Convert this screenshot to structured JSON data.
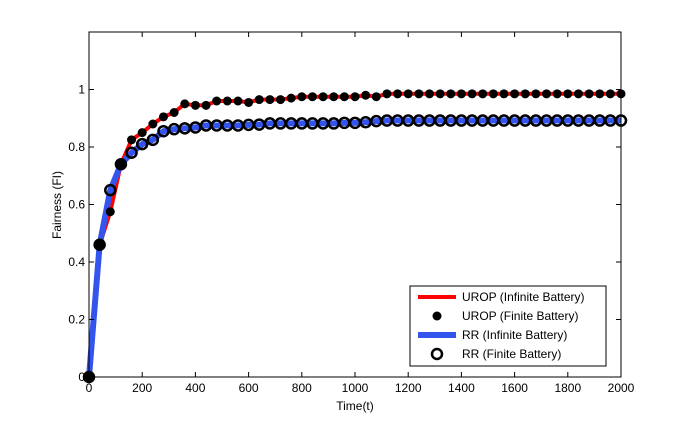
{
  "chart_data": {
    "type": "line",
    "title": "",
    "xlabel": "Time(t)",
    "ylabel": "Fairness (FI)",
    "xlim": [
      0,
      2000
    ],
    "ylim": [
      0,
      1.2
    ],
    "xticks": [
      0,
      200,
      400,
      600,
      800,
      1000,
      1200,
      1400,
      1600,
      1800,
      2000
    ],
    "yticks": [
      0,
      0.2,
      0.4,
      0.6,
      0.8,
      1
    ],
    "xtick_labels": [
      "0",
      "200",
      "400",
      "600",
      "800",
      "1000",
      "1200",
      "1400",
      "1600",
      "1800",
      "2000"
    ],
    "ytick_labels": [
      "0",
      "0.2",
      "0.4",
      "0.6",
      "0.8",
      "1"
    ],
    "grid": false,
    "legend_position": "bottom-right",
    "x": [
      0,
      40,
      80,
      120,
      160,
      200,
      240,
      280,
      320,
      360,
      400,
      440,
      480,
      520,
      560,
      600,
      640,
      680,
      720,
      760,
      800,
      840,
      880,
      920,
      960,
      1000,
      1040,
      1080,
      1120,
      1160,
      1200,
      1240,
      1280,
      1320,
      1360,
      1400,
      1440,
      1480,
      1520,
      1560,
      1600,
      1640,
      1680,
      1720,
      1760,
      1800,
      1840,
      1880,
      1920,
      1960,
      2000
    ],
    "series": [
      {
        "name": "UROP (Infinite Battery)",
        "style": "line",
        "color": "#ff0000",
        "values": [
          0,
          0.46,
          0.575,
          0.74,
          0.825,
          0.85,
          0.88,
          0.905,
          0.92,
          0.95,
          0.945,
          0.945,
          0.96,
          0.96,
          0.96,
          0.955,
          0.965,
          0.965,
          0.965,
          0.97,
          0.975,
          0.975,
          0.975,
          0.975,
          0.975,
          0.975,
          0.98,
          0.975,
          0.985,
          0.985,
          0.985,
          0.985,
          0.985,
          0.985,
          0.985,
          0.985,
          0.985,
          0.985,
          0.985,
          0.985,
          0.985,
          0.985,
          0.985,
          0.985,
          0.985,
          0.985,
          0.985,
          0.985,
          0.985,
          0.985,
          0.985
        ]
      },
      {
        "name": "UROP (Finite Battery)",
        "style": "marker-filled",
        "color": "#000000",
        "values": [
          0,
          0.46,
          0.575,
          0.74,
          0.825,
          0.85,
          0.88,
          0.905,
          0.92,
          0.95,
          0.945,
          0.945,
          0.96,
          0.96,
          0.96,
          0.955,
          0.965,
          0.965,
          0.965,
          0.97,
          0.975,
          0.975,
          0.975,
          0.975,
          0.975,
          0.975,
          0.98,
          0.975,
          0.985,
          0.985,
          0.985,
          0.985,
          0.985,
          0.985,
          0.985,
          0.985,
          0.985,
          0.985,
          0.985,
          0.985,
          0.985,
          0.985,
          0.985,
          0.985,
          0.985,
          0.985,
          0.985,
          0.985,
          0.985,
          0.985,
          0.985
        ]
      },
      {
        "name": "RR (Infinite Battery)",
        "style": "line",
        "color": "#3355ee",
        "values": [
          0,
          0.46,
          0.65,
          0.74,
          0.78,
          0.81,
          0.825,
          0.855,
          0.862,
          0.865,
          0.868,
          0.875,
          0.875,
          0.875,
          0.875,
          0.877,
          0.878,
          0.882,
          0.882,
          0.882,
          0.882,
          0.882,
          0.882,
          0.882,
          0.884,
          0.884,
          0.886,
          0.89,
          0.892,
          0.892,
          0.892,
          0.892,
          0.892,
          0.892,
          0.892,
          0.892,
          0.892,
          0.892,
          0.892,
          0.892,
          0.892,
          0.892,
          0.892,
          0.892,
          0.892,
          0.892,
          0.892,
          0.892,
          0.892,
          0.892,
          0.892
        ]
      },
      {
        "name": "RR (Finite Battery)",
        "style": "marker-open",
        "color": "#000000",
        "values": [
          0,
          0.46,
          0.65,
          0.74,
          0.78,
          0.81,
          0.825,
          0.855,
          0.862,
          0.865,
          0.868,
          0.875,
          0.875,
          0.875,
          0.875,
          0.877,
          0.878,
          0.882,
          0.882,
          0.882,
          0.882,
          0.882,
          0.882,
          0.882,
          0.884,
          0.884,
          0.886,
          0.89,
          0.892,
          0.892,
          0.892,
          0.892,
          0.892,
          0.892,
          0.892,
          0.892,
          0.892,
          0.892,
          0.892,
          0.892,
          0.892,
          0.892,
          0.892,
          0.892,
          0.892,
          0.892,
          0.892,
          0.892,
          0.892,
          0.892,
          0.892
        ]
      }
    ]
  }
}
